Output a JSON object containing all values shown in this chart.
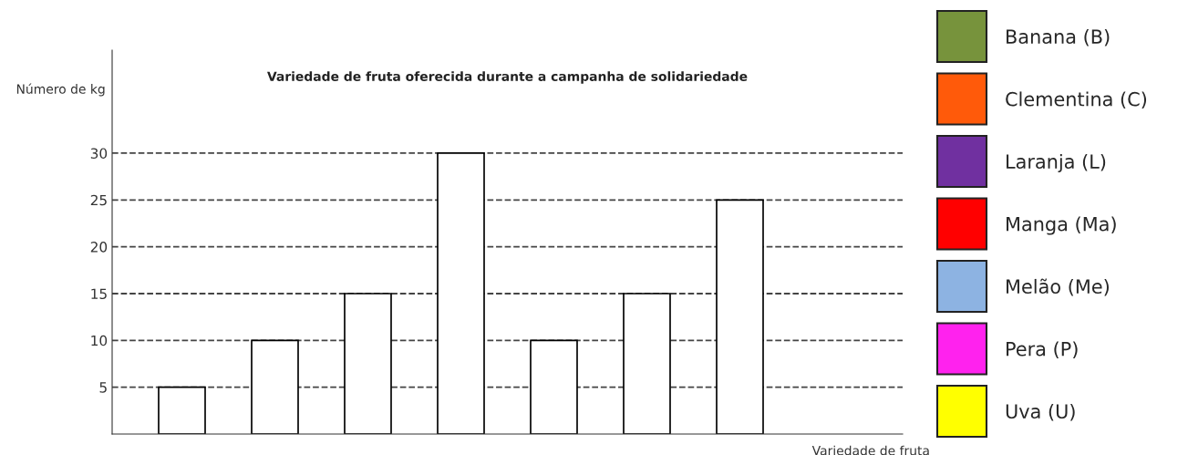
{
  "chart_data": [
    {
      "type": "bar",
      "title": "Variedade de fruta oferecida durante a campanha de solidariedade",
      "xlabel": "Variedade de fruta",
      "ylabel": "Número de kg",
      "categories": [
        null,
        null,
        null,
        null,
        null,
        null,
        null
      ],
      "values": [
        5,
        10,
        15,
        30,
        10,
        15,
        25
      ],
      "color": "#ffffff",
      "ylim": [
        0,
        41
      ],
      "yticks": [
        5,
        10,
        15,
        20,
        25,
        30
      ],
      "grid": "y",
      "line_style": "dashed"
    },
    {
      "type": "other",
      "categories": [
        "Banana (B)",
        "Clementina (C)",
        "Laranja (L)",
        "Manga (Ma)",
        "Melão (Me)",
        "Pera (P)",
        "Uva (U)"
      ],
      "colors": [
        "#77933c",
        "#ff5a0a",
        "#7030a0",
        "#ff0000",
        "#8db3e2",
        "#ff22ee",
        "#ffff00"
      ]
    }
  ]
}
